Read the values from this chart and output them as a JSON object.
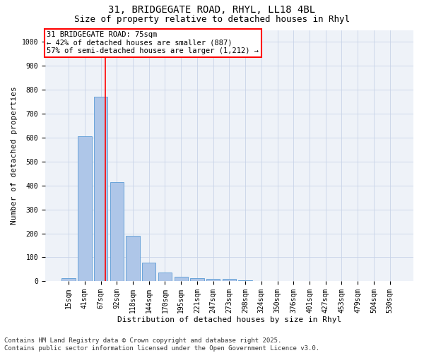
{
  "title1": "31, BRIDGEGATE ROAD, RHYL, LL18 4BL",
  "title2": "Size of property relative to detached houses in Rhyl",
  "xlabel": "Distribution of detached houses by size in Rhyl",
  "ylabel": "Number of detached properties",
  "categories": [
    "15sqm",
    "41sqm",
    "67sqm",
    "92sqm",
    "118sqm",
    "144sqm",
    "170sqm",
    "195sqm",
    "221sqm",
    "247sqm",
    "273sqm",
    "298sqm",
    "324sqm",
    "350sqm",
    "376sqm",
    "401sqm",
    "427sqm",
    "453sqm",
    "479sqm",
    "504sqm",
    "530sqm"
  ],
  "values": [
    12,
    605,
    770,
    415,
    190,
    78,
    35,
    18,
    12,
    10,
    10,
    5,
    0,
    0,
    0,
    0,
    0,
    0,
    0,
    0,
    0
  ],
  "bar_color": "#aec6e8",
  "bar_edge_color": "#5b9bd5",
  "grid_color": "#c8d4e8",
  "bg_color": "#eef2f8",
  "annotation_text": "31 BRIDGEGATE ROAD: 75sqm\n← 42% of detached houses are smaller (887)\n57% of semi-detached houses are larger (1,212) →",
  "ylim": [
    0,
    1050
  ],
  "yticks": [
    0,
    100,
    200,
    300,
    400,
    500,
    600,
    700,
    800,
    900,
    1000
  ],
  "red_line_x": 2.3,
  "footnote": "Contains HM Land Registry data © Crown copyright and database right 2025.\nContains public sector information licensed under the Open Government Licence v3.0.",
  "title_fontsize": 10,
  "subtitle_fontsize": 9,
  "axis_label_fontsize": 8,
  "tick_fontsize": 7,
  "annot_fontsize": 7.5,
  "footnote_fontsize": 6.5
}
